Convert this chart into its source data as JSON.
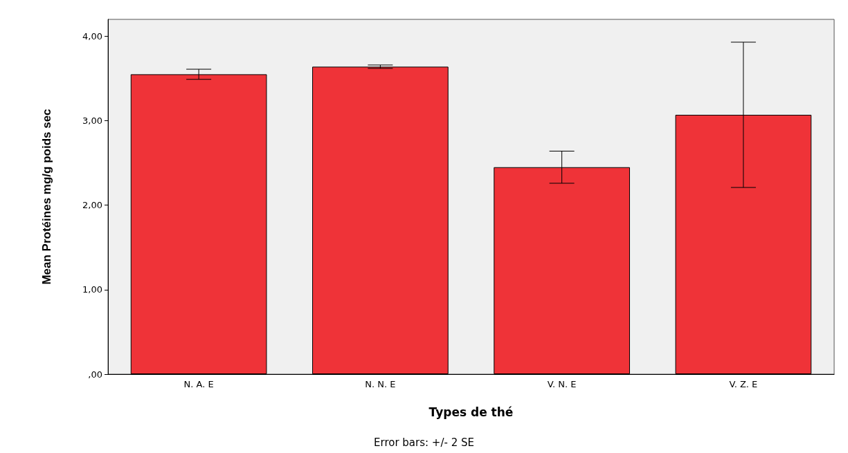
{
  "chart_data": {
    "type": "bar",
    "xlabel": "Types de thé",
    "ylabel": "Mean Protéines mg/g poids sec",
    "categories": [
      "N. A. E",
      "N. N. E",
      "V. N. E",
      "V. Z. E"
    ],
    "values": [
      3.55,
      3.64,
      2.45,
      3.07
    ],
    "errors": [
      0.06,
      0.02,
      0.19,
      0.86
    ],
    "color": "#ef3338",
    "ylim": [
      0,
      4.2
    ],
    "yticks": [
      {
        "value": 0,
        "label": ",00"
      },
      {
        "value": 1,
        "label": "1,00"
      },
      {
        "value": 2,
        "label": "2,00"
      },
      {
        "value": 3,
        "label": "3,00"
      },
      {
        "value": 4,
        "label": "4,00"
      }
    ],
    "grid": false,
    "annotations": [
      "Error bars: +/- 2 SE"
    ]
  }
}
